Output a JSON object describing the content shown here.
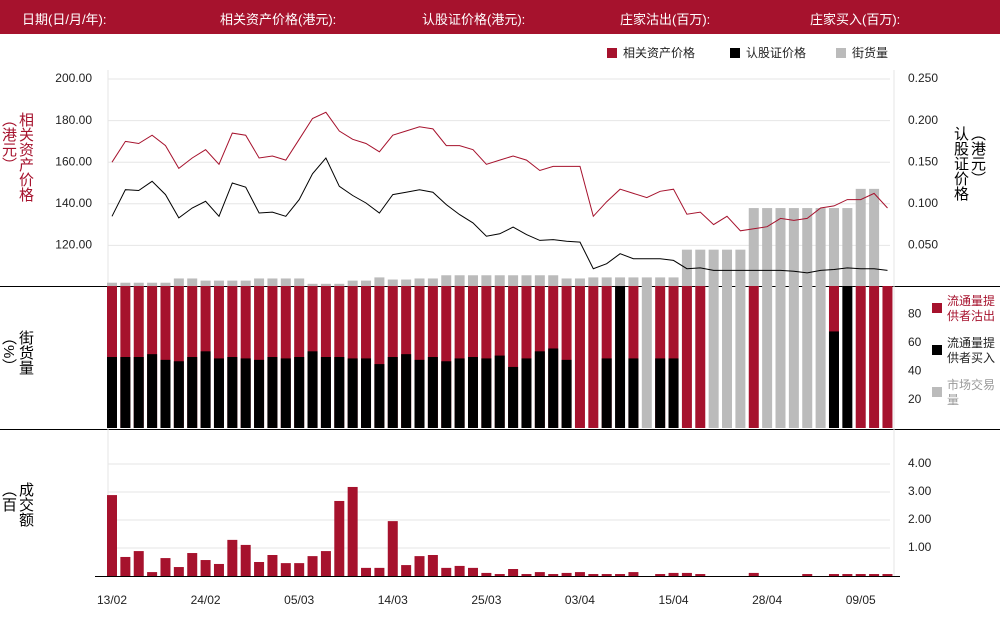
{
  "header": {
    "labels": [
      "日期(日/月/年):",
      "相关资产价格(港元):",
      "认股证价格(港元):",
      "庄家沽出(百万):",
      "庄家买入(百万):"
    ]
  },
  "chart_data": [
    {
      "type": "line",
      "y_label": "相关资产价格（港元）",
      "y2_label": "认股证价格（港元）",
      "ylim": [
        100,
        200
      ],
      "yticks": [
        {
          "value": 120,
          "label": "120.00"
        },
        {
          "value": 140,
          "label": "140.00"
        },
        {
          "value": 160,
          "label": "160.00"
        },
        {
          "value": 180,
          "label": "180.00"
        },
        {
          "value": 200,
          "label": "200.00"
        }
      ],
      "y2lim": [
        0,
        0.25
      ],
      "y2ticks": [
        {
          "value": 0.05,
          "label": "0.050"
        },
        {
          "value": 0.1,
          "label": "0.100"
        },
        {
          "value": 0.15,
          "label": "0.150"
        },
        {
          "value": 0.2,
          "label": "0.200"
        },
        {
          "value": 0.25,
          "label": "0.250"
        }
      ],
      "y3lim": [
        0,
        195
      ],
      "grid": true,
      "series": [
        {
          "name": "相关资产价格",
          "color": "#a6122d",
          "values": [
            160,
            170,
            169,
            173,
            168,
            157,
            162,
            166,
            159,
            174,
            173,
            162,
            163,
            161,
            171,
            181,
            184,
            175,
            171,
            169,
            165,
            173,
            175,
            177,
            176,
            168,
            168,
            166,
            159,
            161,
            163,
            161,
            156,
            158,
            158,
            158,
            134,
            141,
            147,
            145,
            143,
            146,
            147,
            135,
            136,
            130,
            134,
            127,
            128,
            129,
            133,
            132,
            133,
            138,
            139,
            142,
            142,
            145,
            138
          ]
        },
        {
          "name": "认股证价格",
          "color": "#000000",
          "axis": "y2",
          "values": [
            0.085,
            0.117,
            0.116,
            0.127,
            0.111,
            0.083,
            0.095,
            0.103,
            0.085,
            0.125,
            0.12,
            0.089,
            0.09,
            0.085,
            0.105,
            0.136,
            0.155,
            0.121,
            0.11,
            0.101,
            0.089,
            0.111,
            0.114,
            0.117,
            0.114,
            0.099,
            0.087,
            0.077,
            0.061,
            0.064,
            0.072,
            0.063,
            0.056,
            0.057,
            0.055,
            0.054,
            0.022,
            0.028,
            0.04,
            0.034,
            0.034,
            0.034,
            0.032,
            0.022,
            0.023,
            0.02,
            0.02,
            0.02,
            0.02,
            0.02,
            0.02,
            0.019,
            0.017,
            0.02,
            0.021,
            0.023,
            0.022,
            0.022,
            0.02
          ]
        },
        {
          "name": "街货量",
          "color": "#bbbbbb",
          "type": "bar",
          "axis": "y3",
          "values": [
            4,
            4,
            4,
            4,
            4,
            8,
            8,
            6,
            6,
            6,
            6,
            8,
            8,
            8,
            8,
            3,
            3,
            3,
            6,
            6,
            9,
            7,
            7,
            8,
            8,
            11,
            11,
            11,
            11,
            11,
            11,
            11,
            11,
            11,
            8,
            8,
            9,
            9,
            9,
            9,
            9,
            9,
            9,
            35,
            35,
            35,
            35,
            35,
            74,
            74,
            74,
            74,
            74,
            74,
            74,
            74,
            92,
            92,
            null
          ]
        }
      ]
    },
    {
      "type": "bar",
      "y_label": "街货量（%）",
      "ylim": [
        0,
        100
      ],
      "yticks": [
        20,
        40,
        60,
        80
      ],
      "series": [
        {
          "name": "市场交易量",
          "color": "#bbbbbb",
          "values": [
            null,
            null,
            null,
            null,
            null,
            null,
            null,
            null,
            null,
            null,
            null,
            null,
            null,
            null,
            null,
            null,
            null,
            null,
            null,
            null,
            null,
            null,
            null,
            null,
            null,
            null,
            null,
            null,
            null,
            null,
            null,
            null,
            null,
            null,
            null,
            null,
            null,
            null,
            null,
            null,
            100,
            null,
            null,
            null,
            null,
            100,
            100,
            100,
            null,
            100,
            100,
            100,
            100,
            100,
            null,
            null,
            null,
            null,
            null
          ]
        },
        {
          "name": "流通量提供者沽出",
          "color": "#a6122d",
          "values": [
            100,
            100,
            100,
            100,
            100,
            100,
            100,
            100,
            100,
            100,
            100,
            100,
            100,
            100,
            100,
            100,
            100,
            100,
            100,
            100,
            100,
            100,
            100,
            100,
            100,
            100,
            100,
            100,
            100,
            100,
            100,
            100,
            100,
            100,
            100,
            100,
            100,
            100,
            null,
            100,
            null,
            100,
            100,
            100,
            100,
            null,
            null,
            null,
            100,
            null,
            null,
            null,
            null,
            null,
            100,
            null,
            100,
            100,
            100
          ]
        },
        {
          "name": "流通量提供者买入",
          "color": "#000000",
          "values": [
            50,
            50,
            50,
            52,
            48,
            47,
            50,
            54,
            49,
            50,
            49,
            48,
            50,
            49,
            50,
            54,
            50,
            50,
            49,
            49,
            45,
            50,
            52,
            48,
            50,
            47,
            49,
            50,
            49,
            51,
            43,
            49,
            54,
            56,
            48,
            null,
            null,
            49,
            100,
            49,
            null,
            49,
            49,
            null,
            null,
            null,
            null,
            null,
            null,
            null,
            null,
            null,
            null,
            null,
            68,
            100,
            null,
            null,
            null
          ]
        }
      ],
      "legend_order": [
        1,
        2,
        0
      ]
    },
    {
      "type": "bar",
      "y_label": "成交额（百万）",
      "ylim": [
        0,
        4.4
      ],
      "yticks": [
        {
          "value": 1,
          "label": "1.00"
        },
        {
          "value": 2,
          "label": "2.00"
        },
        {
          "value": 3,
          "label": "3.00"
        },
        {
          "value": 4,
          "label": "4.00"
        }
      ],
      "grid": true,
      "color": "#a6122d",
      "categories": [
        "13/02",
        null,
        null,
        null,
        null,
        null,
        null,
        "24/02",
        null,
        null,
        null,
        null,
        null,
        null,
        "05/03",
        null,
        null,
        null,
        null,
        null,
        null,
        "14/03",
        null,
        null,
        null,
        null,
        null,
        null,
        "25/03",
        null,
        null,
        null,
        null,
        null,
        null,
        "03/04",
        null,
        null,
        null,
        null,
        null,
        null,
        "15/04",
        null,
        null,
        null,
        null,
        null,
        null,
        "28/04",
        null,
        null,
        null,
        null,
        null,
        null,
        "09/05",
        null,
        null
      ],
      "values": [
        2.89,
        0.68,
        0.89,
        0.14,
        0.64,
        0.32,
        0.82,
        0.57,
        0.43,
        1.29,
        1.11,
        0.5,
        0.75,
        0.46,
        0.46,
        0.71,
        0.89,
        2.68,
        3.18,
        0.29,
        0.29,
        1.96,
        0.39,
        0.71,
        0.75,
        0.29,
        0.36,
        0.29,
        0.11,
        0.07,
        0.25,
        0.07,
        0.14,
        0.07,
        0.11,
        0.14,
        0.07,
        0.07,
        0.07,
        0.14,
        null,
        0.07,
        0.11,
        0.11,
        0.07,
        null,
        null,
        null,
        0.11,
        null,
        null,
        null,
        0.07,
        null,
        0.07,
        0.07,
        0.07,
        0.07,
        0.07
      ]
    }
  ]
}
